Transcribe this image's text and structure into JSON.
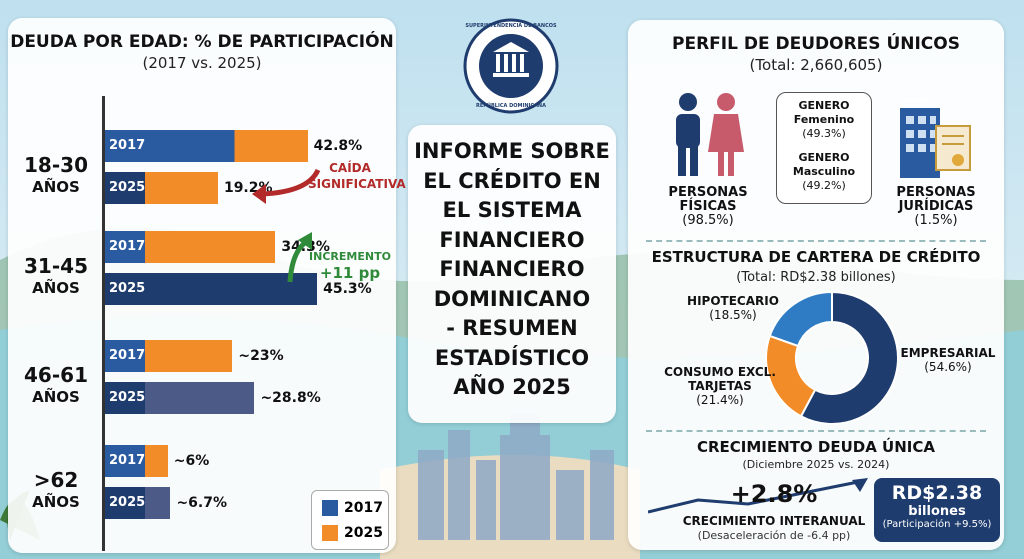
{
  "emblem": {
    "top_text": "SUPERINTENDENCIA DE BANCOS",
    "bottom_text": "REPÚBLICA DOMINICANA"
  },
  "center": {
    "title_lines": [
      "INFORME SOBRE",
      "EL CRÉDITO EN",
      "EL SISTEMA",
      "FINANCIERO",
      "FINANCIERO",
      "DOMINICANO",
      "- RESUMEN",
      "ESTADÍSTICO",
      "AÑO 2025"
    ]
  },
  "left": {
    "title": "DEUDA POR EDAD: % DE PARTICIPACIÓN",
    "subtitle": "(2017 vs. 2025)",
    "groups": [
      {
        "age": "18-30",
        "age_sub": "AÑOS",
        "v2017": 42.8,
        "v2025": 19.2,
        "l2017": "42.8%",
        "l2025": "19.2%"
      },
      {
        "age": "31-45",
        "age_sub": "AÑOS",
        "v2017": 34.3,
        "v2025": 45.3,
        "l2017": "34.3%",
        "l2025": "45.3%"
      },
      {
        "age": "46-61",
        "age_sub": "AÑOS",
        "v2017": 23,
        "v2025": 28.8,
        "l2017": "~23%",
        "l2025": "~28.8%"
      },
      {
        "age": ">62",
        "age_sub": "AÑOS",
        "v2017": 6,
        "v2025": 6.7,
        "l2017": "~6%",
        "l2025": "~6.7%"
      }
    ],
    "year_2017": "2017",
    "year_2025": "2025",
    "annotation_drop_1": "CAÍDA",
    "annotation_drop_2": "SIGNIFICATIVA",
    "annotation_inc_1": "INCREMENTO",
    "annotation_inc_2": "+11 pp",
    "legend_2017": "2017",
    "legend_2025": "2025",
    "colors": {
      "blue_2017": "#2a5aa0",
      "orange": "#f28c28",
      "navy_2025": "#1f3c6e",
      "slate_2025": "#4b5a86"
    }
  },
  "right": {
    "profile_title": "PERFIL DE DEUDORES ÚNICOS",
    "profile_total": "(Total: 2,660,605)",
    "personas_fisicas": "PERSONAS",
    "personas_fisicas_2": "FÍSICAS",
    "personas_fisicas_pct": "(98.5%)",
    "genero_fem_1": "GENERO",
    "genero_fem_2": "Femenino",
    "genero_fem_pct": "(49.3%)",
    "genero_masc_1": "GENERO",
    "genero_masc_2": "Masculino",
    "genero_masc_pct": "(49.2%)",
    "company_label": "COMPANY",
    "personas_juridicas": "PERSONAS",
    "personas_juridicas_2": "JURÍDICAS",
    "personas_juridicas_pct": "(1.5%)",
    "cartera_title": "ESTRUCTURA DE CARTERA DE CRÉDITO",
    "cartera_total": "(Total: RD$2.38 billones)",
    "hipotecario": "HIPOTECARIO",
    "hipotecario_pct": "(18.5%)",
    "consumo_1": "CONSUMO EXCL.",
    "consumo_2": "TARJETAS",
    "consumo_pct": "(21.4%)",
    "empresarial": "EMPRESARIAL",
    "empresarial_pct": "(54.6%)",
    "crec_title": "CRECIMIENTO DEUDA ÚNICA",
    "crec_sub": "(Diciembre 2025 vs. 2024)",
    "crec_value": "+2.8%",
    "crec_label": "CRECIMIENTO INTERANUAL",
    "crec_note": "(Desaceleración de -6.4 pp)",
    "box_value": "RD$2.38",
    "box_unit": "billones",
    "box_note": "(Participación +9.5%)"
  },
  "chart_data": {
    "type": "pie",
    "labels": [
      "EMPRESARIAL",
      "HIPOTECARIO",
      "CONSUMO EXCL. TARJETAS"
    ],
    "values": [
      54.6,
      18.5,
      21.4
    ],
    "colors": [
      "#1f3c6e",
      "#2f7cc4",
      "#f28c28"
    ]
  }
}
